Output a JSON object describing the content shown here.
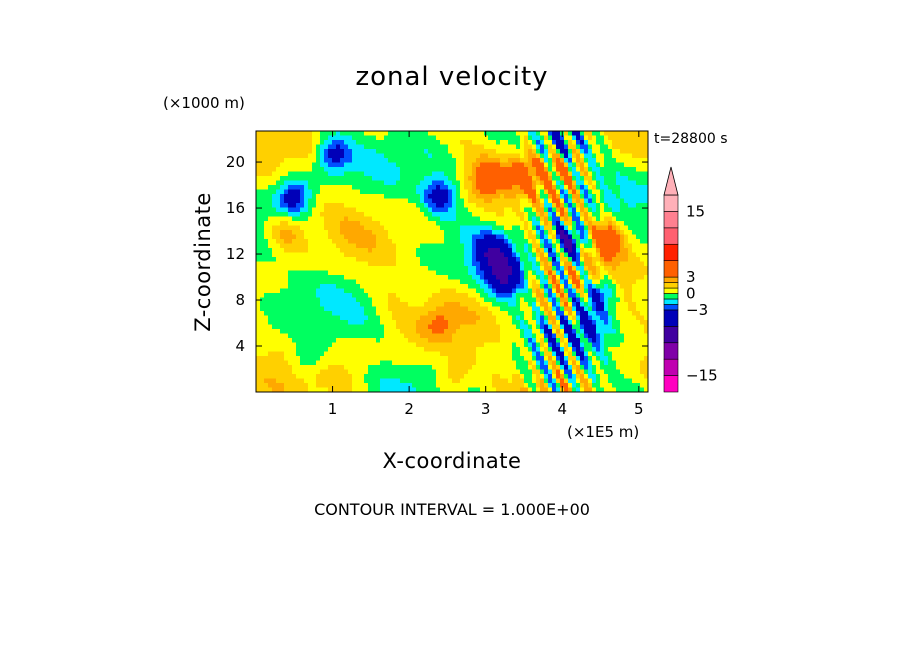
{
  "chart_data": {
    "type": "heatmap",
    "title": "zonal velocity",
    "xlabel": "X-coordinate",
    "ylabel": "Z-coordinate",
    "x_units": "(×1E5 m)",
    "y_units": "(×1000 m)",
    "time_label": "t=28800 s",
    "contour_interval_label": "CONTOUR INTERVAL = 1.000E+00",
    "xlim": [
      0,
      5.12
    ],
    "ylim": [
      0,
      22.7
    ],
    "x_ticks": [
      1,
      2,
      3,
      4,
      5
    ],
    "y_ticks": [
      4,
      8,
      12,
      16,
      20
    ],
    "x_tick_labels": [
      "1",
      "2",
      "3",
      "4",
      "5"
    ],
    "y_tick_labels": [
      "4",
      "8",
      "12",
      "16",
      "20"
    ],
    "colorbar": {
      "min": -18,
      "max": 18,
      "labels": [
        "15",
        "3",
        "0",
        "−3",
        "−15"
      ],
      "label_values": [
        15,
        3,
        0,
        -3,
        -15
      ],
      "levels": [
        {
          "lo": -18,
          "hi": -15,
          "color": "#ff00c0"
        },
        {
          "lo": -15,
          "hi": -12,
          "color": "#c000b0"
        },
        {
          "lo": -12,
          "hi": -9,
          "color": "#8000a8"
        },
        {
          "lo": -9,
          "hi": -6,
          "color": "#4000a0"
        },
        {
          "lo": -6,
          "hi": -3,
          "color": "#0000b8"
        },
        {
          "lo": -3,
          "hi": -2,
          "color": "#0050ff"
        },
        {
          "lo": -2,
          "hi": -1,
          "color": "#00e8ff"
        },
        {
          "lo": -1,
          "hi": 0,
          "color": "#00ff60"
        },
        {
          "lo": 0,
          "hi": 1,
          "color": "#ffff00"
        },
        {
          "lo": 1,
          "hi": 2,
          "color": "#ffd000"
        },
        {
          "lo": 2,
          "hi": 3,
          "color": "#ffa800"
        },
        {
          "lo": 3,
          "hi": 6,
          "color": "#ff6000"
        },
        {
          "lo": 6,
          "hi": 9,
          "color": "#ff2000"
        },
        {
          "lo": 9,
          "hi": 12,
          "color": "#ff6070"
        },
        {
          "lo": 12,
          "hi": 15,
          "color": "#ff8090"
        },
        {
          "lo": 15,
          "hi": 18,
          "color": "#ffb0b8"
        }
      ]
    },
    "field_features": [
      {
        "x": 3.1,
        "z": 12,
        "value": -5
      },
      {
        "x": 3.25,
        "z": 10,
        "value": -6
      },
      {
        "x": 0.5,
        "z": 17,
        "value": -4
      },
      {
        "x": 1.0,
        "z": 20.5,
        "value": -4
      },
      {
        "x": 2.4,
        "z": 17,
        "value": -4
      },
      {
        "x": 3.9,
        "z": 21,
        "value": -4
      },
      {
        "x": 4.1,
        "z": 13,
        "value": -5
      },
      {
        "x": 4.5,
        "z": 8.5,
        "value": -4
      },
      {
        "x": 3.0,
        "z": 18.5,
        "value": 3
      },
      {
        "x": 4.6,
        "z": 13.5,
        "value": 4
      },
      {
        "x": 3.9,
        "z": 20,
        "value": 3
      },
      {
        "x": 0.4,
        "z": 14,
        "value": 2
      },
      {
        "x": 3.5,
        "z": 19,
        "value": 3
      },
      {
        "x": 2.4,
        "z": 6,
        "value": 2
      },
      {
        "x": 2.6,
        "z": 1.2,
        "value": 2
      },
      {
        "x": 1.4,
        "z": 3,
        "value": 0.5
      },
      {
        "x": 4.8,
        "z": 4,
        "value": 0.5
      },
      {
        "x": 1.8,
        "z": 9,
        "value": 0.6
      },
      {
        "x": 4.3,
        "z": 5.5,
        "value": -2.5
      },
      {
        "x": 0.7,
        "z": 3,
        "value": -2
      }
    ]
  }
}
